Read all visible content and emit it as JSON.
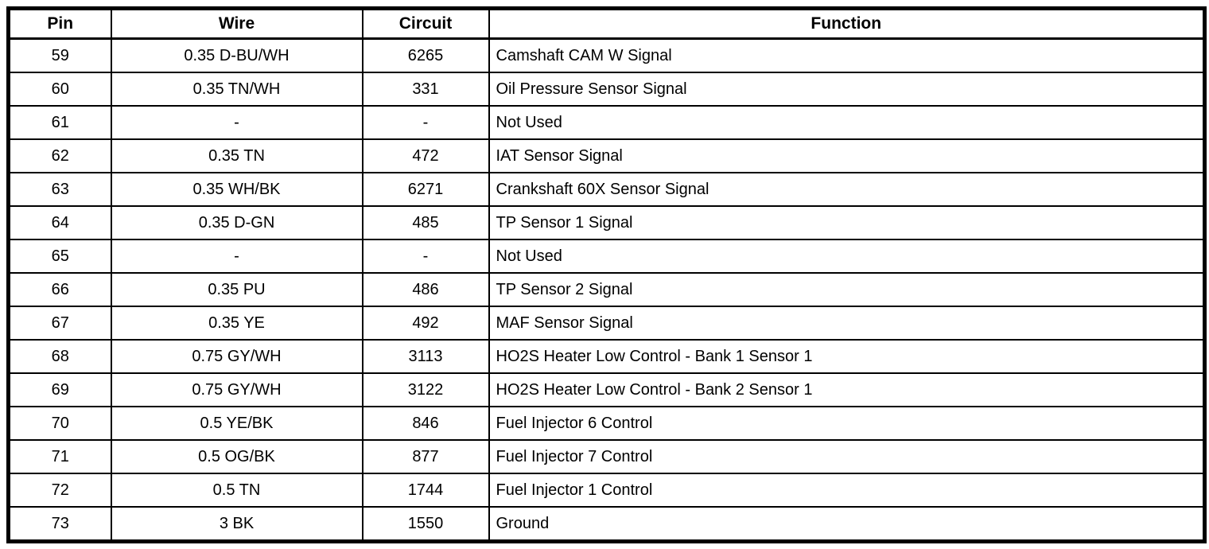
{
  "table": {
    "columns": {
      "pin": "Pin",
      "wire": "Wire",
      "circuit": "Circuit",
      "function": "Function"
    },
    "rows": [
      {
        "pin": "59",
        "wire": "0.35 D-BU/WH",
        "circuit": "6265",
        "function": "Camshaft CAM W Signal"
      },
      {
        "pin": "60",
        "wire": "0.35 TN/WH",
        "circuit": "331",
        "function": "Oil Pressure Sensor Signal"
      },
      {
        "pin": "61",
        "wire": "-",
        "circuit": "-",
        "function": "Not Used"
      },
      {
        "pin": "62",
        "wire": "0.35 TN",
        "circuit": "472",
        "function": "IAT Sensor Signal"
      },
      {
        "pin": "63",
        "wire": "0.35 WH/BK",
        "circuit": "6271",
        "function": "Crankshaft 60X Sensor Signal"
      },
      {
        "pin": "64",
        "wire": "0.35 D-GN",
        "circuit": "485",
        "function": "TP Sensor 1 Signal"
      },
      {
        "pin": "65",
        "wire": "-",
        "circuit": "-",
        "function": "Not Used"
      },
      {
        "pin": "66",
        "wire": "0.35 PU",
        "circuit": "486",
        "function": "TP Sensor 2 Signal"
      },
      {
        "pin": "67",
        "wire": "0.35 YE",
        "circuit": "492",
        "function": "MAF Sensor Signal"
      },
      {
        "pin": "68",
        "wire": "0.75 GY/WH",
        "circuit": "3113",
        "function": "HO2S Heater Low Control - Bank 1 Sensor 1"
      },
      {
        "pin": "69",
        "wire": "0.75 GY/WH",
        "circuit": "3122",
        "function": "HO2S Heater Low Control - Bank 2 Sensor 1"
      },
      {
        "pin": "70",
        "wire": "0.5 YE/BK",
        "circuit": "846",
        "function": "Fuel Injector 6 Control"
      },
      {
        "pin": "71",
        "wire": "0.5 OG/BK",
        "circuit": "877",
        "function": "Fuel Injector 7 Control"
      },
      {
        "pin": "72",
        "wire": "0.5 TN",
        "circuit": "1744",
        "function": "Fuel Injector 1 Control"
      },
      {
        "pin": "73",
        "wire": "3 BK",
        "circuit": "1550",
        "function": "Ground"
      }
    ]
  },
  "colors": {
    "border": "#000000",
    "background": "#ffffff",
    "text": "#000000"
  }
}
